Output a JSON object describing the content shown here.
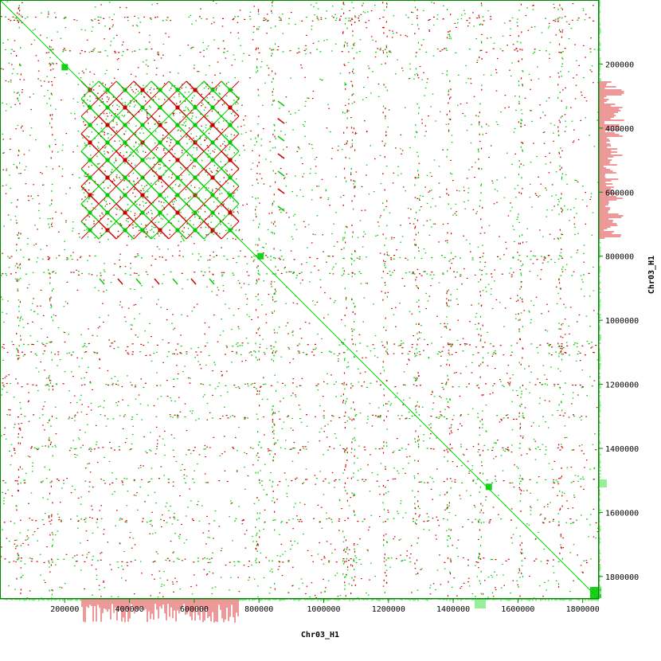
{
  "chart_data": {
    "type": "scatter",
    "title": "",
    "xlabel": "Chr03_H1",
    "ylabel": "Chr03_H1",
    "xlim": [
      0,
      1850000
    ],
    "ylim": [
      0,
      1870000
    ],
    "x_ticks": [
      200000,
      400000,
      600000,
      800000,
      1000000,
      1200000,
      1400000,
      1600000,
      1800000
    ],
    "x_tick_labels": [
      "200000",
      "400000",
      "600000",
      "800000",
      "1000000",
      "1200000",
      "1400000",
      "1600000",
      "1800000"
    ],
    "y_ticks": [
      200000,
      400000,
      600000,
      800000,
      1000000,
      1200000,
      1400000,
      1600000,
      1800000
    ],
    "y_tick_labels": [
      "200000",
      "400000",
      "600000",
      "800000",
      "1000000",
      "1200000",
      "1400000",
      "1600000",
      "1800000"
    ],
    "grid": false,
    "legend": "none",
    "colors": {
      "forward": "#00cc00",
      "reverse": "#cc0000",
      "axis": "#008800",
      "hist_fill": "#99ee99",
      "hist_fill_rev": "#ee9999"
    },
    "series": [
      {
        "color": "#00cc00",
        "points": [
          [
            0,
            0
          ],
          [
            1850000,
            1870000
          ]
        ],
        "segments": [
          [
            0,
            0,
            1850000,
            1870000
          ]
        ]
      }
    ],
    "blocks": [
      {
        "x": [
          230000,
          750000
        ],
        "y": [
          240000,
          750000
        ],
        "orientation": "mixed"
      },
      {
        "x": [
          750000,
          1830000
        ],
        "y": [
          750000,
          1860000
        ],
        "orientation": "forward"
      }
    ],
    "diagonal_squares": [
      [
        200000,
        210000
      ],
      [
        805000,
        800000
      ],
      [
        1510000,
        1520000
      ],
      [
        1840000,
        1850000
      ]
    ]
  }
}
